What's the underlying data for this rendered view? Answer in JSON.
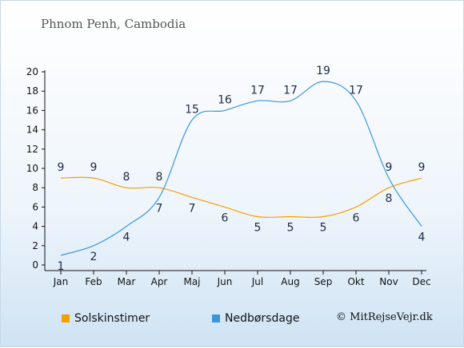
{
  "title": "Phnom Penh, Cambodia",
  "copyright": "© MitRejseVejr.dk",
  "chart_data": {
    "type": "line",
    "categories": [
      "Jan",
      "Feb",
      "Mar",
      "Apr",
      "Maj",
      "Jun",
      "Jul",
      "Aug",
      "Sep",
      "Okt",
      "Nov",
      "Dec"
    ],
    "ylim": [
      0,
      20
    ],
    "yticks": [
      0,
      2,
      4,
      6,
      8,
      10,
      12,
      14,
      16,
      18,
      20
    ],
    "grid": false,
    "legend_position": "bottom",
    "series": [
      {
        "name": "Solskinstimer",
        "color": "#f5a000",
        "values": [
          9,
          9,
          8,
          8,
          7,
          6,
          5,
          5,
          5,
          6,
          8,
          9
        ]
      },
      {
        "name": "Nedbørsdage",
        "color": "#3a96db",
        "values": [
          1,
          2,
          4,
          7,
          15,
          16,
          17,
          17,
          19,
          17,
          9,
          4
        ]
      }
    ]
  }
}
